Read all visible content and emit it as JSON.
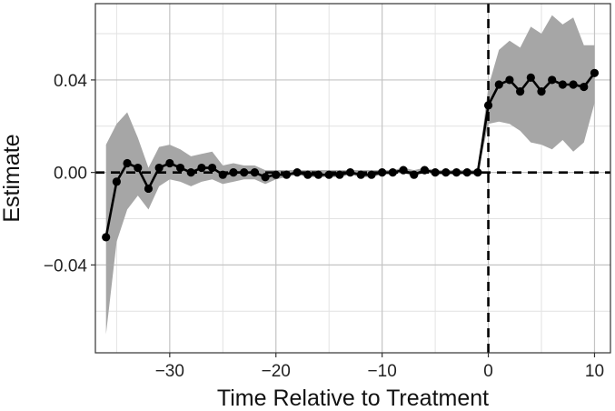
{
  "chart_data": {
    "type": "line",
    "title": "",
    "xlabel": "Time Relative to Treatment",
    "ylabel": "Estimate",
    "xlim": [
      -37,
      11.5
    ],
    "ylim": [
      -0.078,
      0.073
    ],
    "x_ticks": [
      -30,
      -20,
      -10,
      0,
      10
    ],
    "x_tick_labels": [
      "−30",
      "−20",
      "−10",
      "0",
      "10"
    ],
    "y_ticks": [
      -0.04,
      0.0,
      0.04
    ],
    "y_tick_labels": [
      "−0.04",
      "0.00",
      "0.04"
    ],
    "grid": true,
    "reference_lines": {
      "x": 0,
      "y": 0,
      "style": "dashed"
    },
    "series": [
      {
        "points": [
          {
            "x": -36,
            "y": -0.028,
            "lo": -0.07,
            "hi": 0.012
          },
          {
            "x": -35,
            "y": -0.004,
            "lo": -0.03,
            "hi": 0.021
          },
          {
            "x": -34,
            "y": 0.004,
            "lo": -0.016,
            "hi": 0.026
          },
          {
            "x": -33,
            "y": 0.002,
            "lo": -0.01,
            "hi": 0.015
          },
          {
            "x": -32,
            "y": -0.007,
            "lo": -0.016,
            "hi": 0.002
          },
          {
            "x": -31,
            "y": 0.002,
            "lo": -0.006,
            "hi": 0.011
          },
          {
            "x": -30,
            "y": 0.004,
            "lo": -0.003,
            "hi": 0.012
          },
          {
            "x": -29,
            "y": 0.002,
            "lo": -0.004,
            "hi": 0.01
          },
          {
            "x": -28,
            "y": 0.0,
            "lo": -0.006,
            "hi": 0.007
          },
          {
            "x": -27,
            "y": 0.002,
            "lo": -0.004,
            "hi": 0.008
          },
          {
            "x": -26,
            "y": 0.002,
            "lo": -0.003,
            "hi": 0.009
          },
          {
            "x": -25,
            "y": -0.001,
            "lo": -0.005,
            "hi": 0.003
          },
          {
            "x": -24,
            "y": 0.0,
            "lo": -0.004,
            "hi": 0.004
          },
          {
            "x": -23,
            "y": 0.0,
            "lo": -0.003,
            "hi": 0.003
          },
          {
            "x": -22,
            "y": 0.0,
            "lo": -0.003,
            "hi": 0.003
          },
          {
            "x": -21,
            "y": -0.002,
            "lo": -0.005,
            "hi": 0.001
          },
          {
            "x": -20,
            "y": -0.001,
            "lo": -0.003,
            "hi": 0.001
          },
          {
            "x": -19,
            "y": -0.001,
            "lo": -0.002,
            "hi": 0.001
          },
          {
            "x": -18,
            "y": 0.0,
            "lo": -0.001,
            "hi": 0.001
          },
          {
            "x": -17,
            "y": -0.001,
            "lo": -0.002,
            "hi": 0.001
          },
          {
            "x": -16,
            "y": -0.001,
            "lo": -0.002,
            "hi": 0.001
          },
          {
            "x": -15,
            "y": -0.001,
            "lo": -0.002,
            "hi": 0.001
          },
          {
            "x": -14,
            "y": -0.001,
            "lo": -0.002,
            "hi": 0.001
          },
          {
            "x": -13,
            "y": 0.0,
            "lo": -0.001,
            "hi": 0.001
          },
          {
            "x": -12,
            "y": -0.001,
            "lo": -0.002,
            "hi": 0.001
          },
          {
            "x": -11,
            "y": -0.001,
            "lo": -0.002,
            "hi": 0.001
          },
          {
            "x": -10,
            "y": 0.0,
            "lo": -0.001,
            "hi": 0.001
          },
          {
            "x": -9,
            "y": 0.0,
            "lo": -0.001,
            "hi": 0.001
          },
          {
            "x": -8,
            "y": 0.001,
            "lo": 0.0,
            "hi": 0.002
          },
          {
            "x": -7,
            "y": -0.001,
            "lo": -0.002,
            "hi": 0.001
          },
          {
            "x": -6,
            "y": 0.001,
            "lo": 0.0,
            "hi": 0.002
          },
          {
            "x": -5,
            "y": 0.0,
            "lo": -0.001,
            "hi": 0.001
          },
          {
            "x": -4,
            "y": 0.0,
            "lo": -0.001,
            "hi": 0.001
          },
          {
            "x": -3,
            "y": 0.0,
            "lo": -0.001,
            "hi": 0.001
          },
          {
            "x": -2,
            "y": 0.0,
            "lo": -0.001,
            "hi": 0.001
          },
          {
            "x": -1,
            "y": 0.0,
            "lo": -0.001,
            "hi": 0.001
          },
          {
            "x": 0,
            "y": 0.029,
            "lo": 0.021,
            "hi": 0.037
          },
          {
            "x": 1,
            "y": 0.038,
            "lo": 0.022,
            "hi": 0.053
          },
          {
            "x": 2,
            "y": 0.04,
            "lo": 0.021,
            "hi": 0.057
          },
          {
            "x": 3,
            "y": 0.035,
            "lo": 0.018,
            "hi": 0.054
          },
          {
            "x": 4,
            "y": 0.041,
            "lo": 0.013,
            "hi": 0.063
          },
          {
            "x": 5,
            "y": 0.035,
            "lo": 0.012,
            "hi": 0.06
          },
          {
            "x": 6,
            "y": 0.04,
            "lo": 0.01,
            "hi": 0.068
          },
          {
            "x": 7,
            "y": 0.038,
            "lo": 0.014,
            "hi": 0.064
          },
          {
            "x": 8,
            "y": 0.038,
            "lo": 0.009,
            "hi": 0.067
          },
          {
            "x": 9,
            "y": 0.037,
            "lo": 0.013,
            "hi": 0.055
          },
          {
            "x": 10,
            "y": 0.043,
            "lo": 0.03,
            "hi": 0.055
          }
        ]
      }
    ],
    "colors": {
      "line": "#000000",
      "band": "#a6a6a6",
      "grid_major": "#c4c4c4",
      "grid_minor": "#e2e2e2",
      "panel_border": "#333333"
    }
  }
}
